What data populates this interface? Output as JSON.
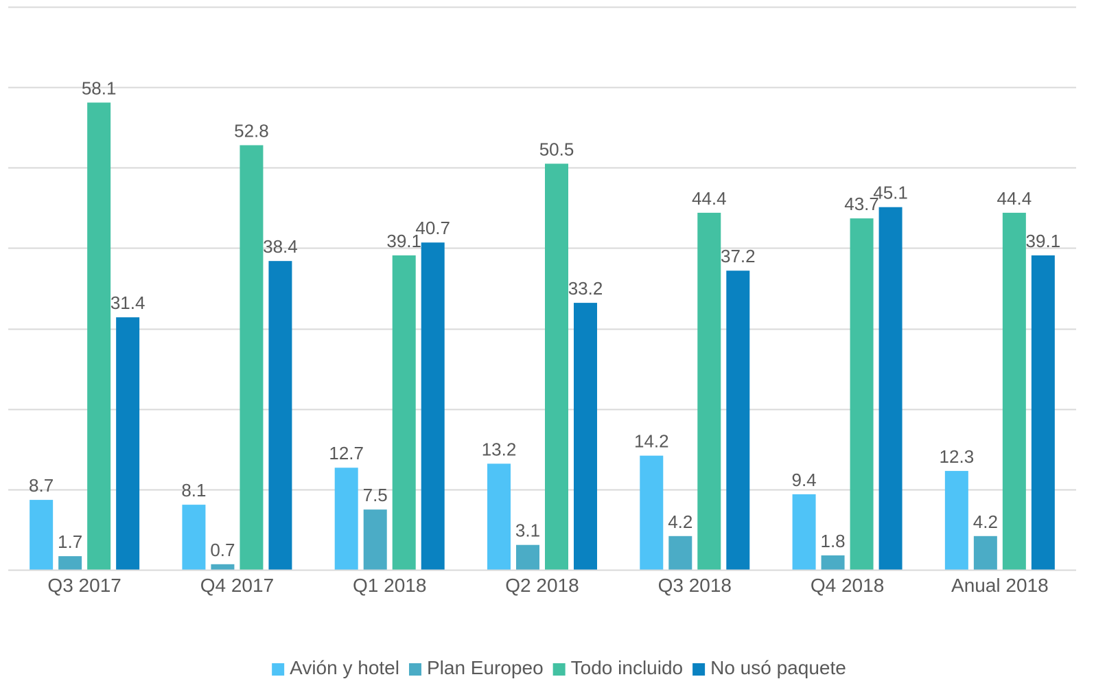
{
  "chart_data": {
    "type": "bar",
    "categories": [
      "Q3 2017",
      "Q4 2017",
      "Q1 2018",
      "Q2 2018",
      "Q3 2018",
      "Q4 2018",
      "Anual 2018"
    ],
    "series": [
      {
        "name": "Avión y hotel",
        "color": "#4fc3f7",
        "values": [
          8.7,
          8.1,
          12.7,
          13.2,
          14.2,
          9.4,
          12.3
        ]
      },
      {
        "name": "Plan Europeo",
        "color": "#4bacc6",
        "values": [
          1.7,
          0.7,
          7.5,
          3.1,
          4.2,
          1.8,
          4.2
        ]
      },
      {
        "name": "Todo incluido",
        "color": "#43c1a2",
        "values": [
          58.1,
          52.8,
          39.1,
          50.5,
          44.4,
          43.7,
          44.4
        ]
      },
      {
        "name": "No usó paquete",
        "color": "#0a82c1",
        "values": [
          31.4,
          38.4,
          40.7,
          33.2,
          37.2,
          45.1,
          39.1
        ]
      }
    ],
    "ylim": [
      0,
      70
    ],
    "y_gridline_step": 10,
    "grid": true,
    "legend_position": "bottom",
    "data_labels": true
  }
}
